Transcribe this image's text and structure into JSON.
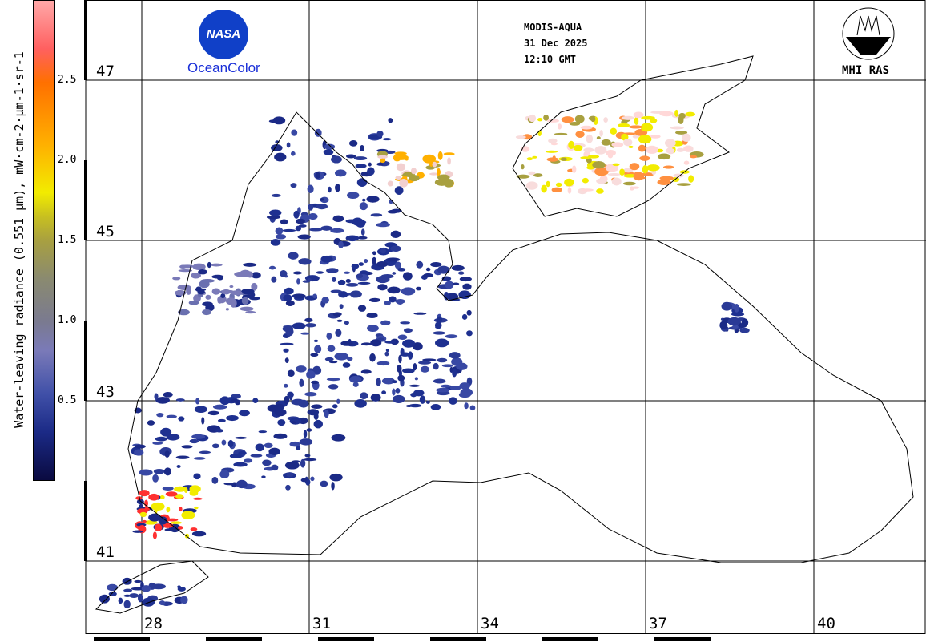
{
  "colorbar": {
    "label": "Water-leaving radiance (0.551 µm), mW·cm-2·µm-1·sr-1",
    "ticks": [
      "2.5",
      "2.0",
      "1.5",
      "1.0",
      "0.5"
    ],
    "range": [
      0,
      2.95
    ]
  },
  "header": {
    "sensor": "MODIS-AQUA",
    "date": "31 Dec 2025",
    "time": "12:10 GMT"
  },
  "logos": {
    "nasa": "NASA",
    "oceancolor": "OceanColor",
    "mhi": "MHI RAS"
  },
  "grid": {
    "latitudes": [
      "47",
      "45",
      "43",
      "41"
    ],
    "longitudes": [
      "28",
      "31",
      "34",
      "37",
      "40"
    ]
  },
  "colors": {
    "low": "#0a0a40",
    "mid": "#7a7ab8",
    "high": "#ffa8a8",
    "coast": "#000000"
  }
}
